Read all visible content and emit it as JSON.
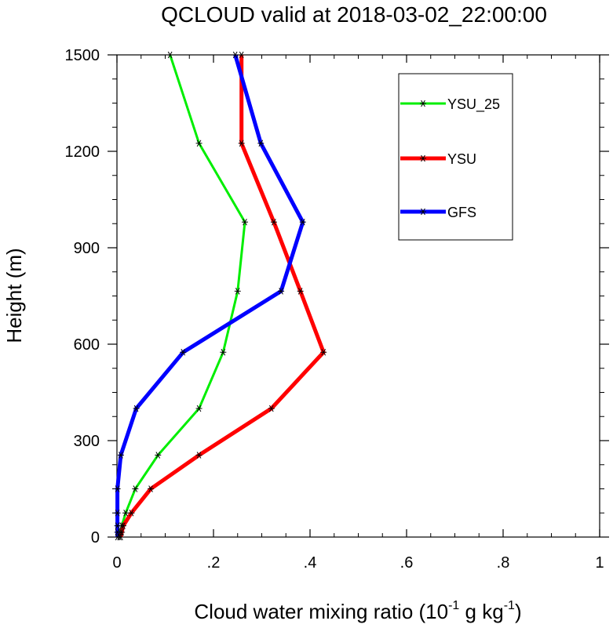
{
  "chart_data": {
    "type": "line",
    "title": "QCLOUD valid at 2018-03-02_22:00:00",
    "xlabel": "Cloud water mixing ratio (10",
    "xlabel_exp1": "-1",
    "xlabel_mid": " g kg",
    "xlabel_exp2": "-1",
    "xlabel_end": ")",
    "ylabel": "Height (m)",
    "xlim": [
      0,
      1
    ],
    "ylim": [
      0,
      1500
    ],
    "xticks": [
      0,
      0.2,
      0.4,
      0.6,
      0.8,
      1
    ],
    "xtick_labels": [
      "0",
      ".2",
      ".4",
      ".6",
      ".8",
      "1"
    ],
    "yticks": [
      0,
      300,
      600,
      900,
      1200,
      1500
    ],
    "ytick_labels": [
      "0",
      "300",
      "600",
      "900",
      "1200",
      "1500"
    ],
    "legend_position": "top-right",
    "series": [
      {
        "name": "YSU_25",
        "color": "#00ee00",
        "heights": [
          0,
          15,
          35,
          75,
          150,
          255,
          400,
          575,
          765,
          980,
          1225,
          1500
        ],
        "values": [
          0.005,
          0.007,
          0.01,
          0.018,
          0.038,
          0.085,
          0.17,
          0.22,
          0.25,
          0.265,
          0.17,
          0.11
        ]
      },
      {
        "name": "YSU",
        "color": "#ff0000",
        "heights": [
          0,
          15,
          35,
          75,
          150,
          255,
          400,
          575,
          765,
          980,
          1225,
          1500
        ],
        "values": [
          0.008,
          0.01,
          0.013,
          0.03,
          0.07,
          0.17,
          0.32,
          0.428,
          0.38,
          0.325,
          0.258,
          0.258
        ]
      },
      {
        "name": "GFS",
        "color": "#0000ff",
        "heights": [
          0,
          15,
          35,
          75,
          150,
          255,
          400,
          575,
          765,
          980,
          1225,
          1500
        ],
        "values": [
          0.001,
          0.001,
          0.001,
          0.001,
          0.001,
          0.008,
          0.04,
          0.137,
          0.34,
          0.385,
          0.298,
          0.245
        ]
      }
    ]
  }
}
